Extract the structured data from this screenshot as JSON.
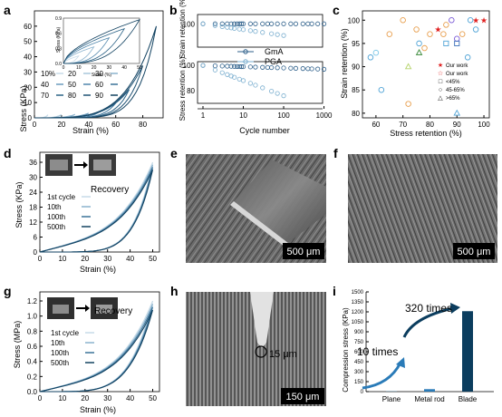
{
  "panels": {
    "a": {
      "label": "a",
      "xlabel": "Strain (%)",
      "ylabel": "Stress (KPa)",
      "xticks": [
        "0",
        "20",
        "40",
        "60",
        "80"
      ],
      "yticks": [
        "0",
        "10",
        "20",
        "30",
        "40",
        "50",
        "60"
      ],
      "inset": {
        "ylabel": "Stress (KPa)",
        "xlabel": "Strain (%)",
        "xticks": [
          "0",
          "10",
          "20",
          "30",
          "40",
          "50"
        ],
        "yticks": [
          "0.0",
          "0.3",
          "0.6",
          "0.9"
        ]
      },
      "legend": [
        "10%",
        "20",
        "30",
        "40",
        "50",
        "60",
        "70",
        "80",
        "90"
      ]
    },
    "b": {
      "label": "b",
      "ylabel_top": "Strain retention (%)",
      "ylabel_bottom": "Stress retention (%)",
      "xlabel": "Cycle number",
      "xticks": [
        "1",
        "10",
        "100",
        "1000"
      ],
      "yticks_top": [
        "100"
      ],
      "yticks_bottom": [
        "100",
        "80"
      ],
      "legend": [
        {
          "name": "GmA",
          "color": "#2d5f8a"
        },
        {
          "name": "PGA",
          "color": "#7aaecf"
        }
      ]
    },
    "c": {
      "label": "c",
      "xlabel": "Stress retention (%)",
      "ylabel": "Strain retention (%)",
      "xticks": [
        "60",
        "70",
        "80",
        "90",
        "100"
      ],
      "yticks": [
        "80",
        "85",
        "90",
        "95",
        "100"
      ],
      "legend": [
        "Our work",
        "Our work",
        "<45%",
        "45-65%",
        ">65%"
      ]
    },
    "d": {
      "label": "d",
      "xlabel": "Strain (%)",
      "ylabel": "Stress (KPa)",
      "xticks": [
        "0",
        "10",
        "20",
        "30",
        "40",
        "50"
      ],
      "yticks": [
        "0",
        "6",
        "12",
        "18",
        "24",
        "30",
        "36"
      ],
      "recovery": "Recovery",
      "legend": [
        "1st cycle",
        "10th",
        "100th",
        "500th"
      ]
    },
    "e": {
      "label": "e",
      "scale": "500 μm"
    },
    "f": {
      "label": "f",
      "scale": "500 μm"
    },
    "g": {
      "label": "g",
      "xlabel": "Strain (%)",
      "ylabel": "Stress (MPa)",
      "xticks": [
        "0",
        "10",
        "20",
        "30",
        "40",
        "50"
      ],
      "yticks": [
        "0.0",
        "0.2",
        "0.4",
        "0.6",
        "0.8",
        "1.0",
        "1.2"
      ],
      "recovery": "Recovery",
      "legend": [
        "1st cycle",
        "10th",
        "100th",
        "500th"
      ]
    },
    "h": {
      "label": "h",
      "scale": "150 μm",
      "annotation": "15 μm"
    },
    "i": {
      "label": "i",
      "ylabel": "Compression stress (KPa)",
      "yticks": [
        "0",
        "150",
        "300",
        "450",
        "600",
        "750",
        "900",
        "1050",
        "1200",
        "1350",
        "1500"
      ],
      "categories": [
        "Plane",
        "Metal rod",
        "Blade"
      ],
      "values": [
        3,
        37,
        1210
      ],
      "annotations": [
        "10 times",
        "320 times"
      ],
      "bar_colors": [
        "#4fa3d6",
        "#2a7bb8",
        "#0b3d5e"
      ]
    }
  }
}
